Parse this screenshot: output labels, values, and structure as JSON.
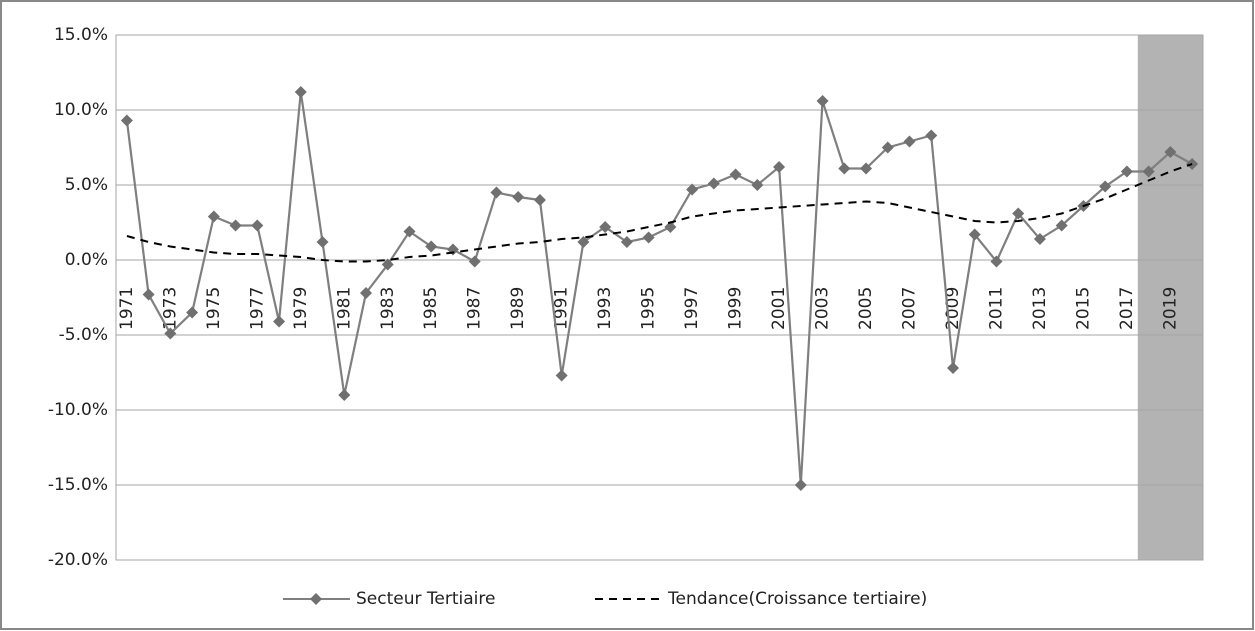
{
  "chart_data": {
    "type": "line",
    "categories": [
      "1971",
      null,
      "1973",
      null,
      "1975",
      null,
      "1977",
      null,
      "1979",
      null,
      "1981",
      null,
      "1983",
      null,
      "1985",
      null,
      "1987",
      null,
      "1989",
      null,
      "1991",
      null,
      "1993",
      null,
      "1995",
      null,
      "1997",
      null,
      "1999",
      null,
      "2001",
      null,
      "2003",
      null,
      "2005",
      null,
      "2007",
      null,
      "2009",
      null,
      "2011",
      null,
      "2013",
      null,
      "2015",
      null,
      "2017",
      null,
      "2019",
      null
    ],
    "series": [
      {
        "name": "Secteur Tertiaire",
        "color": "#7f7f7f",
        "marker": "diamond",
        "values": [
          9.3,
          -2.3,
          -4.9,
          -3.5,
          2.9,
          2.3,
          2.3,
          -4.1,
          11.2,
          1.2,
          -9.0,
          -2.2,
          -0.3,
          1.9,
          0.9,
          0.7,
          -0.1,
          4.5,
          4.2,
          4.0,
          -7.7,
          1.2,
          2.2,
          1.2,
          1.5,
          2.2,
          4.7,
          5.1,
          5.7,
          5.0,
          6.2,
          -15.0,
          10.6,
          6.1,
          6.1,
          7.5,
          7.9,
          8.3,
          -7.2,
          1.7,
          -0.1,
          3.1,
          1.4,
          2.3,
          3.6,
          4.9,
          5.9,
          5.9,
          7.2,
          6.4
        ]
      },
      {
        "name": "Tendance(Croissance tertiaire)",
        "color": "#000000",
        "dashed": true,
        "values": [
          1.6,
          1.2,
          0.9,
          0.7,
          0.5,
          0.4,
          0.4,
          0.3,
          0.2,
          0.0,
          -0.1,
          -0.1,
          0.0,
          0.2,
          0.3,
          0.5,
          0.7,
          0.9,
          1.1,
          1.2,
          1.4,
          1.5,
          1.7,
          1.9,
          2.2,
          2.5,
          2.9,
          3.1,
          3.3,
          3.4,
          3.5,
          3.6,
          3.7,
          3.8,
          3.9,
          3.8,
          3.5,
          3.2,
          2.9,
          2.6,
          2.5,
          2.6,
          2.8,
          3.1,
          3.6,
          4.1,
          4.7,
          5.3,
          5.9,
          6.4
        ]
      }
    ],
    "ylim": [
      -20,
      15
    ],
    "yticks": [
      {
        "value": -20,
        "label": "-20.0%"
      },
      {
        "value": -15,
        "label": "-15.0%"
      },
      {
        "value": -10,
        "label": "-10.0%"
      },
      {
        "value": -5,
        "label": "-5.0%"
      },
      {
        "value": 0,
        "label": "0.0%"
      },
      {
        "value": 5,
        "label": "5.0%"
      },
      {
        "value": 10,
        "label": "10.0%"
      },
      {
        "value": 15,
        "label": "15.0%"
      }
    ],
    "grid": true,
    "highlight": {
      "color": "#b3b3b3",
      "categories": [
        47,
        49
      ]
    },
    "legend": "bottom"
  }
}
